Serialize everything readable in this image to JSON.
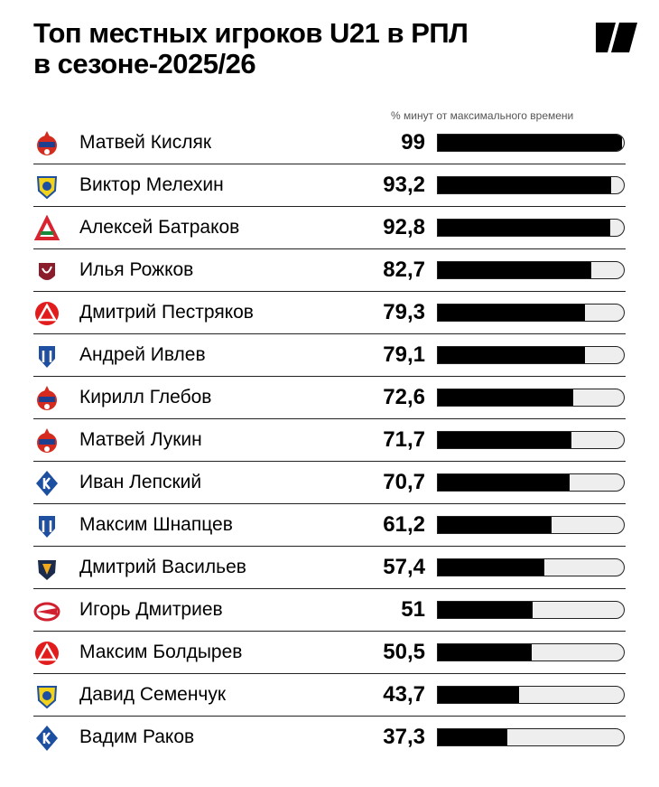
{
  "header": {
    "title_line1": "Топ местных игроков U21 в РПЛ",
    "title_line2": "в сезоне-2025/26",
    "brand_icon": "brand-logo-icon"
  },
  "chart_data": {
    "type": "bar",
    "orientation": "horizontal",
    "title": "Топ местных игроков U21 в РПЛ в сезоне-2025/26",
    "xlabel": "% минут от максимального времени",
    "xlim": [
      0,
      100
    ],
    "categories": [
      "Матвей Кисляк",
      "Виктор Мелехин",
      "Алексей Батраков",
      "Илья Рожков",
      "Дмитрий Пестряков",
      "Андрей Ивлев",
      "Кирилл Глебов",
      "Матвей Лукин",
      "Иван Лепский",
      "Максим Шнапцев",
      "Дмитрий Васильев",
      "Игорь Дмитриев",
      "Максим Болдырев",
      "Давид Семенчук",
      "Вадим Раков"
    ],
    "values": [
      99,
      93.2,
      92.8,
      82.7,
      79.3,
      79.1,
      72.6,
      71.7,
      70.7,
      61.2,
      57.4,
      51,
      50.5,
      43.7,
      37.3
    ],
    "labels": [
      "99",
      "93,2",
      "92,8",
      "82,7",
      "79,3",
      "79,1",
      "72,6",
      "71,7",
      "70,7",
      "61,2",
      "57,4",
      "51",
      "50,5",
      "43,7",
      "37,3"
    ],
    "clubs": [
      "cska",
      "rostov",
      "lokomotiv",
      "rubin",
      "akron",
      "pari-nn",
      "cska",
      "cska",
      "krylia-sovetov",
      "pari-nn",
      "fakel",
      "spartak",
      "akron",
      "rostov",
      "krylia-sovetov"
    ]
  },
  "colors": {
    "bar": "#000000",
    "track": "#eeeeee",
    "cska": "#d52b1e",
    "rostov": "#f2d21b",
    "lokomotiv": "#d9232e",
    "rubin": "#8b1c2c",
    "akron": "#e21c1c",
    "pari-nn": "#1f4fa0",
    "krylia-sovetov": "#1d4fa0",
    "fakel": "#1b2b4b",
    "spartak": "#d1202f"
  }
}
